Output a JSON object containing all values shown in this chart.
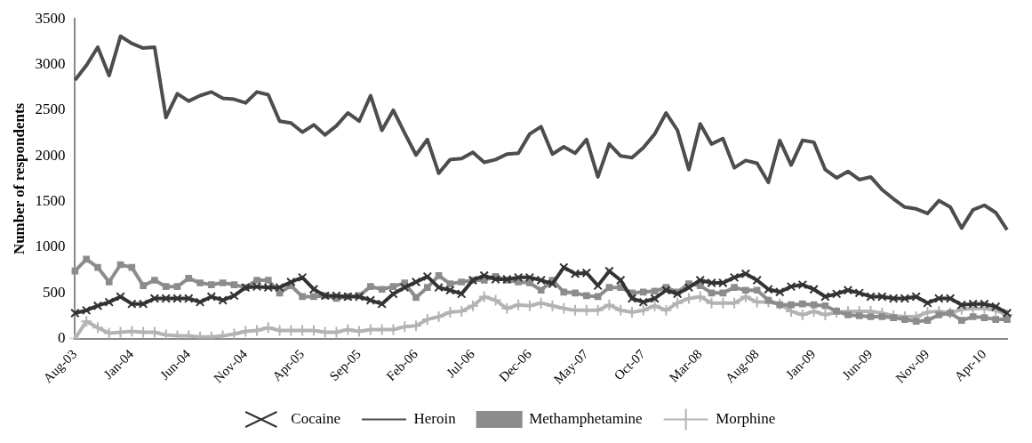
{
  "chart_data": {
    "type": "line",
    "ylabel": "Number of respondents",
    "categories": [
      "Aug-03",
      null,
      null,
      null,
      null,
      "Jan-04",
      null,
      null,
      null,
      null,
      "Jun-04",
      null,
      null,
      null,
      null,
      "Nov-04",
      null,
      null,
      null,
      null,
      "Apr-05",
      null,
      null,
      null,
      null,
      "Sep-05",
      null,
      null,
      null,
      null,
      "Feb-06",
      null,
      null,
      null,
      null,
      "Jul-06",
      null,
      null,
      null,
      null,
      "Dec-06",
      null,
      null,
      null,
      null,
      "May-07",
      null,
      null,
      null,
      null,
      "Oct-07",
      null,
      null,
      null,
      null,
      "Mar-08",
      null,
      null,
      null,
      null,
      "Aug-08",
      null,
      null,
      null,
      null,
      "Jan-09",
      null,
      null,
      null,
      null,
      "Jun-09",
      null,
      null,
      null,
      null,
      "Nov-09",
      null,
      null,
      null,
      null,
      "Apr-10",
      null,
      null
    ],
    "series": [
      {
        "name": "Cocaine",
        "color": "#333333",
        "marker": "cross",
        "values": [
          280,
          310,
          360,
          400,
          460,
          380,
          380,
          440,
          440,
          440,
          440,
          400,
          460,
          420,
          470,
          560,
          570,
          560,
          560,
          620,
          670,
          540,
          470,
          470,
          460,
          460,
          420,
          380,
          490,
          560,
          620,
          680,
          560,
          530,
          490,
          640,
          690,
          650,
          650,
          670,
          670,
          640,
          600,
          780,
          710,
          720,
          580,
          740,
          640,
          440,
          400,
          440,
          530,
          490,
          560,
          640,
          610,
          610,
          670,
          710,
          640,
          540,
          510,
          570,
          590,
          540,
          460,
          490,
          530,
          500,
          460,
          460,
          440,
          440,
          460,
          390,
          440,
          440,
          370,
          380,
          380,
          350,
          280
        ]
      },
      {
        "name": "Heroin",
        "color": "#4d4d4d",
        "marker": "none",
        "values": [
          2830,
          2990,
          3190,
          2880,
          3310,
          3230,
          3180,
          3190,
          2420,
          2680,
          2600,
          2660,
          2700,
          2630,
          2620,
          2580,
          2700,
          2670,
          2380,
          2360,
          2260,
          2340,
          2230,
          2330,
          2470,
          2380,
          2660,
          2280,
          2500,
          2250,
          2010,
          2180,
          1810,
          1960,
          1970,
          2040,
          1930,
          1960,
          2020,
          2030,
          2240,
          2320,
          2020,
          2100,
          2030,
          2180,
          1770,
          2130,
          2000,
          1980,
          2090,
          2240,
          2470,
          2280,
          1850,
          2350,
          2130,
          2190,
          1870,
          1950,
          1920,
          1710,
          2170,
          1900,
          2170,
          2150,
          1850,
          1760,
          1830,
          1740,
          1770,
          1630,
          1530,
          1440,
          1420,
          1370,
          1510,
          1440,
          1210,
          1410,
          1460,
          1380,
          1190
        ]
      },
      {
        "name": "Methamphetamine",
        "color": "#8c8c8c",
        "marker": "square",
        "values": [
          740,
          870,
          780,
          620,
          810,
          780,
          580,
          640,
          570,
          570,
          660,
          610,
          590,
          610,
          590,
          560,
          640,
          640,
          500,
          580,
          460,
          460,
          470,
          440,
          460,
          470,
          570,
          540,
          570,
          610,
          450,
          560,
          690,
          600,
          620,
          640,
          640,
          680,
          640,
          620,
          610,
          530,
          640,
          510,
          500,
          470,
          460,
          560,
          560,
          500,
          510,
          520,
          560,
          510,
          600,
          580,
          500,
          500,
          560,
          530,
          530,
          420,
          370,
          370,
          380,
          370,
          360,
          300,
          260,
          250,
          240,
          240,
          230,
          210,
          190,
          200,
          260,
          280,
          200,
          240,
          230,
          210,
          210
        ]
      },
      {
        "name": "Morphine",
        "color": "#b3b3b3",
        "marker": "plus",
        "values": [
          0,
          190,
          120,
          60,
          70,
          80,
          70,
          70,
          40,
          30,
          30,
          20,
          20,
          30,
          50,
          80,
          90,
          120,
          90,
          90,
          90,
          90,
          70,
          70,
          100,
          80,
          100,
          100,
          100,
          130,
          140,
          210,
          240,
          290,
          300,
          360,
          460,
          420,
          330,
          370,
          360,
          390,
          360,
          330,
          310,
          310,
          310,
          370,
          310,
          290,
          310,
          360,
          310,
          390,
          440,
          460,
          390,
          390,
          390,
          460,
          400,
          400,
          380,
          300,
          260,
          300,
          260,
          290,
          300,
          300,
          300,
          280,
          250,
          240,
          240,
          290,
          300,
          280,
          320,
          330,
          330,
          310,
          260
        ]
      }
    ],
    "ylim": [
      0,
      3500
    ],
    "yticks": [
      0,
      500,
      1000,
      1500,
      2000,
      2500,
      3000,
      3500
    ],
    "grid": false,
    "legend": "bottom"
  }
}
